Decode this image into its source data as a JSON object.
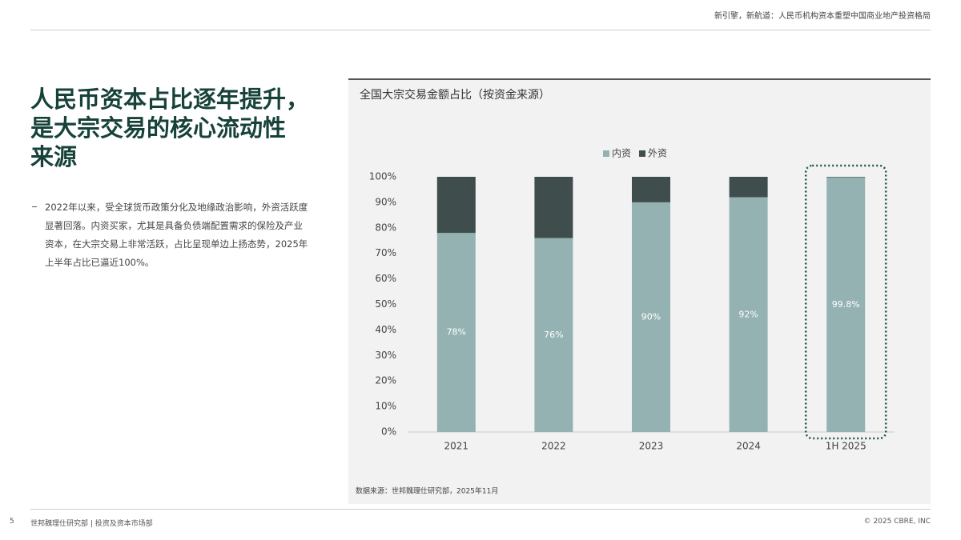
{
  "header": {
    "text": "新引擎，新航道：人民币机构资本重塑中国商业地产投资格局"
  },
  "title": [
    "人民币资本占比逐年提升，",
    "是大宗交易的核心流动性",
    "来源"
  ],
  "body": "2022年以来，受全球货币政策分化及地缘政治影响，外资活跃度显著回落。内资买家，尤其是具备负债端配置需求的保险及产业资本，在大宗交易上非常活跃，占比呈现单边上扬态势，2025年上半年占比已逼近100%。",
  "footer": {
    "page": "5",
    "dept": "世邦魏理仕研究部 | 投资及资本市场部",
    "copyright": "© 2025 CBRE, INC"
  },
  "chart_data": {
    "type": "stacked_bar",
    "title": "全国大宗交易金额占比（按资金来源）",
    "categories": [
      "2021",
      "2022",
      "2023",
      "2024",
      "1H 2025"
    ],
    "series": [
      {
        "name": "内资",
        "color": "#94b2b2",
        "values": [
          78,
          76,
          90,
          92,
          99.8
        ],
        "value_labels": [
          "78%",
          "76%",
          "90%",
          "92%",
          "99.8%"
        ]
      },
      {
        "name": "外资",
        "color": "#3f4d4d",
        "values": [
          22,
          24,
          10,
          8,
          0.2
        ]
      }
    ],
    "ylim": [
      0,
      100
    ],
    "yticks": [
      {
        "value": 0,
        "label": "0%"
      },
      {
        "value": 10,
        "label": "10%"
      },
      {
        "value": 20,
        "label": "20%"
      },
      {
        "value": 30,
        "label": "30%"
      },
      {
        "value": 40,
        "label": "40%"
      },
      {
        "value": 50,
        "label": "50%"
      },
      {
        "value": 60,
        "label": "60%"
      },
      {
        "value": 70,
        "label": "70%"
      },
      {
        "value": 80,
        "label": "80%"
      },
      {
        "value": 90,
        "label": "90%"
      },
      {
        "value": 100,
        "label": "100%"
      }
    ],
    "legend": "top",
    "source": "数据来源：世邦魏理仕研究部，2025年11月"
  }
}
